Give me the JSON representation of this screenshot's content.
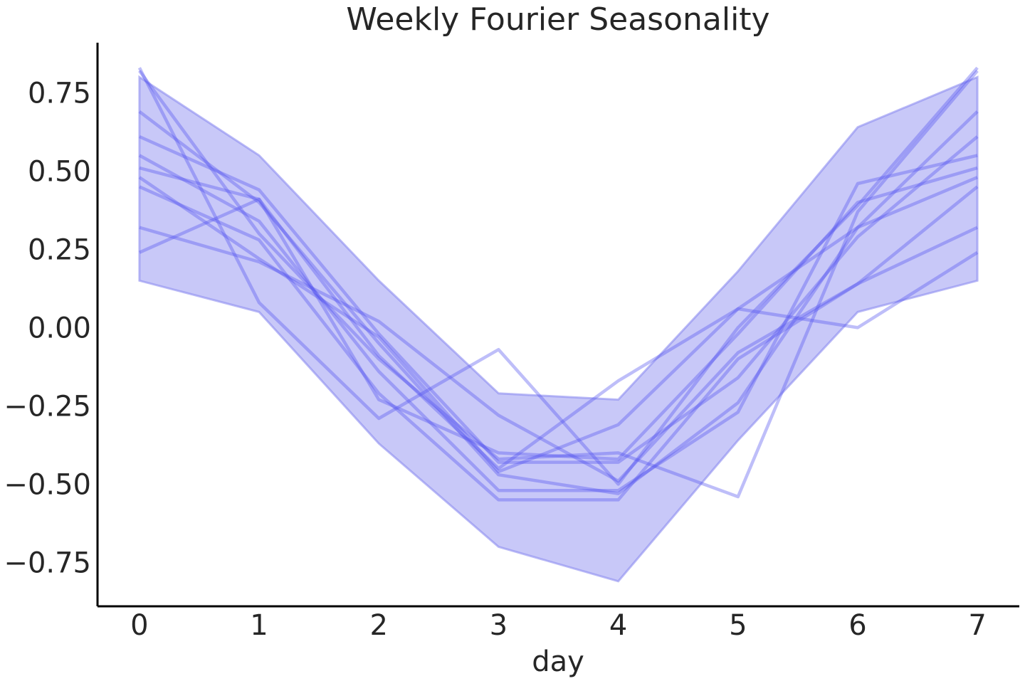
{
  "chart_data": {
    "type": "line",
    "title": "Weekly Fourier Seasonality",
    "xlabel": "day",
    "ylabel": "",
    "x": [
      0,
      1,
      2,
      3,
      4,
      5,
      6,
      7
    ],
    "xlim": [
      -0.35,
      7.35
    ],
    "ylim": [
      -0.89,
      0.91
    ],
    "xticks": [
      0,
      1,
      2,
      3,
      4,
      5,
      6,
      7
    ],
    "xtick_labels": [
      "0",
      "1",
      "2",
      "3",
      "4",
      "5",
      "6",
      "7"
    ],
    "yticks": [
      0.75,
      0.5,
      0.25,
      0.0,
      -0.25,
      -0.5,
      -0.75
    ],
    "ytick_labels": [
      "0.75",
      "0.50",
      "0.25",
      "0.00",
      "−0.25",
      "−0.50",
      "−0.75"
    ],
    "grid": false,
    "line_color": "#5555ee",
    "band_color": "#8c8cf0",
    "band": {
      "upper": [
        0.8,
        0.55,
        0.15,
        -0.21,
        -0.23,
        0.18,
        0.64,
        0.8
      ],
      "lower": [
        0.15,
        0.05,
        -0.37,
        -0.7,
        -0.81,
        -0.36,
        0.05,
        0.15
      ]
    },
    "series": [
      {
        "values": [
          0.83,
          0.08,
          -0.29,
          -0.07,
          -0.5,
          0.0,
          0.39,
          0.83
        ]
      },
      {
        "values": [
          0.69,
          0.4,
          -0.05,
          -0.47,
          -0.53,
          -0.24,
          0.32,
          0.69
        ]
      },
      {
        "values": [
          0.61,
          0.44,
          -0.02,
          -0.43,
          -0.43,
          -0.16,
          0.29,
          0.61
        ]
      },
      {
        "values": [
          0.55,
          0.34,
          -0.14,
          -0.52,
          -0.52,
          -0.27,
          0.46,
          0.55
        ]
      },
      {
        "values": [
          0.51,
          0.41,
          -0.23,
          -0.4,
          -0.42,
          -0.02,
          0.4,
          0.51
        ]
      },
      {
        "values": [
          0.48,
          0.22,
          -0.03,
          -0.46,
          -0.31,
          0.06,
          0.32,
          0.48
        ]
      },
      {
        "values": [
          0.45,
          0.28,
          -0.21,
          -0.55,
          -0.55,
          -0.1,
          0.14,
          0.45
        ]
      },
      {
        "values": [
          0.32,
          0.21,
          0.02,
          -0.28,
          -0.49,
          -0.08,
          0.14,
          0.32
        ]
      },
      {
        "values": [
          0.24,
          0.41,
          -0.09,
          -0.45,
          -0.17,
          0.06,
          0.0,
          0.24
        ]
      },
      {
        "values": [
          0.82,
          0.3,
          -0.1,
          -0.42,
          -0.4,
          -0.54,
          0.37,
          0.82
        ]
      }
    ]
  }
}
